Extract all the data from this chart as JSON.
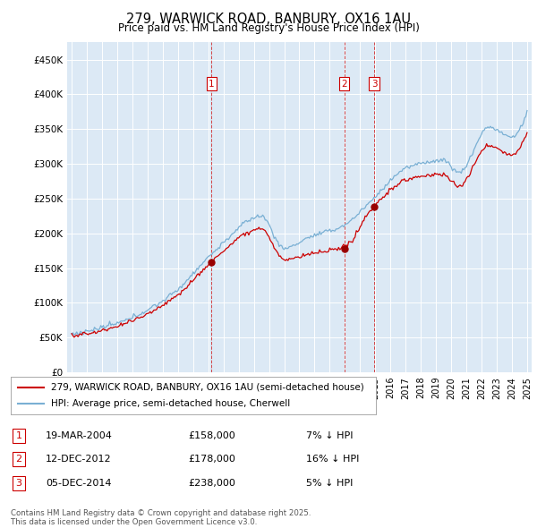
{
  "title": "279, WARWICK ROAD, BANBURY, OX16 1AU",
  "subtitle": "Price paid vs. HM Land Registry's House Price Index (HPI)",
  "red_line_label": "279, WARWICK ROAD, BANBURY, OX16 1AU (semi-detached house)",
  "blue_line_label": "HPI: Average price, semi-detached house, Cherwell",
  "footer": "Contains HM Land Registry data © Crown copyright and database right 2025.\nThis data is licensed under the Open Government Licence v3.0.",
  "transactions": [
    {
      "num": 1,
      "date": "19-MAR-2004",
      "price": "£158,000",
      "hpi_diff": "7% ↓ HPI",
      "year": 2004.22,
      "price_val": 158000
    },
    {
      "num": 2,
      "date": "12-DEC-2012",
      "price": "£178,000",
      "hpi_diff": "16% ↓ HPI",
      "year": 2012.95,
      "price_val": 178000
    },
    {
      "num": 3,
      "date": "05-DEC-2014",
      "price": "£238,000",
      "hpi_diff": "5% ↓ HPI",
      "year": 2014.93,
      "price_val": 238000
    }
  ],
  "ylim": [
    0,
    475000
  ],
  "yticks": [
    0,
    50000,
    100000,
    150000,
    200000,
    250000,
    300000,
    350000,
    400000,
    450000
  ],
  "ytick_labels": [
    "£0",
    "£50K",
    "£100K",
    "£150K",
    "£200K",
    "£250K",
    "£300K",
    "£350K",
    "£400K",
    "£450K"
  ],
  "red_color": "#cc0000",
  "blue_color": "#7ab0d4",
  "dashed_color": "#cc0000",
  "plot_bg_color": "#dce9f5",
  "marker_color": "#990000"
}
